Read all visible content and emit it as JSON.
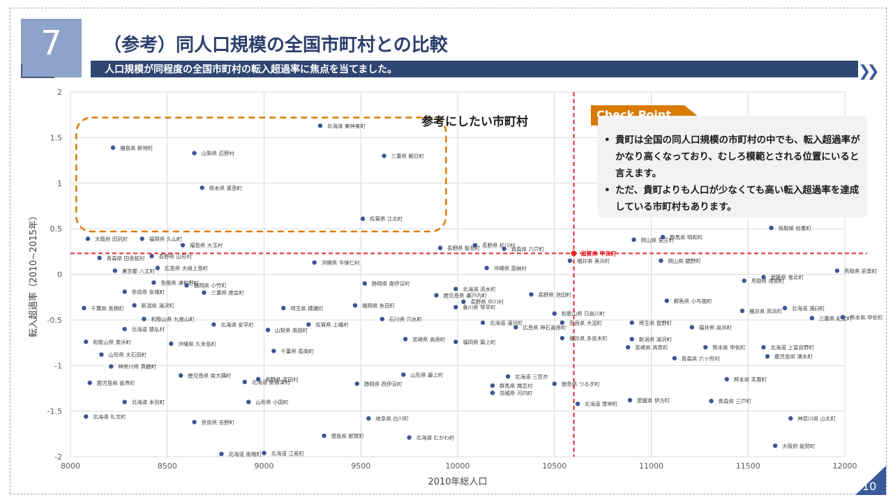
{
  "slide_number": "7",
  "page_number": "10",
  "title": "（参考）同人口規模の全国市町村との比較",
  "subtitle": "人口規模が同程度の全国市町村の転入超過率に焦点を当てました。",
  "nav_icon": "double-chevron-right-icon",
  "callout_label": "参考にしたい市町村",
  "checkpoint": {
    "title": "Check Point",
    "items": [
      "貴町は全国の同人口規模の市町村の中でも、転入超過率がかなり高くなっており、むしろ模範とされる位置にいると言えます。",
      "ただ、貴町よりも人口が少なくても高い転入超過率を達成している市町村もあります。"
    ]
  },
  "colors": {
    "accent": "#2f4673",
    "marker": "#3d5593",
    "highlight": "#e06b00",
    "refline": "#e3252c",
    "checkpoint": "#d97a00"
  },
  "chart_data": {
    "type": "scatter",
    "xlabel": "2010年総人口",
    "ylabel": "転入超過率（2010~2015年）",
    "xlim": [
      8000,
      12000
    ],
    "ylim": [
      -2,
      2
    ],
    "xticks": [
      8000,
      8500,
      9000,
      9500,
      10000,
      10500,
      11000,
      11500,
      12000
    ],
    "yticks": [
      -2,
      -1.5,
      -1,
      -0.5,
      0,
      0.5,
      1,
      1.5,
      2
    ],
    "grid": true,
    "reference": {
      "x": 10600,
      "y": 0.23,
      "label": "滋賀県 甲良町"
    },
    "highlight_region": {
      "x": [
        8030,
        9940
      ],
      "y": [
        0.47,
        1.72
      ]
    },
    "points": [
      {
        "x": 9290,
        "y": 1.63,
        "label": "北海道 東神楽町"
      },
      {
        "x": 8220,
        "y": 1.39,
        "label": "福島県 新地町"
      },
      {
        "x": 8640,
        "y": 1.33,
        "label": "山梨県 忍野村"
      },
      {
        "x": 9620,
        "y": 1.3,
        "label": "三重県 朝日町"
      },
      {
        "x": 8680,
        "y": 0.95,
        "label": "熊本県 嘉島町"
      },
      {
        "x": 9510,
        "y": 0.61,
        "label": "佐賀県 江北町"
      },
      {
        "x": 8090,
        "y": 0.39,
        "label": "大阪府 田尻町"
      },
      {
        "x": 8370,
        "y": 0.39,
        "label": "福岡県 久山町"
      },
      {
        "x": 8580,
        "y": 0.32,
        "label": "福島県 大玉村"
      },
      {
        "x": 9910,
        "y": 0.29,
        "label": "長野県 飯島町"
      },
      {
        "x": 10090,
        "y": 0.32,
        "label": "長野県 松川村"
      },
      {
        "x": 10240,
        "y": 0.28,
        "label": "青森県 六戸町"
      },
      {
        "x": 10580,
        "y": 0.15,
        "label": "福井県 美浜町"
      },
      {
        "x": 10910,
        "y": 0.38,
        "label": "岡山県 里庄町"
      },
      {
        "x": 11060,
        "y": 0.41,
        "label": "群馬県 明和町"
      },
      {
        "x": 11620,
        "y": 0.51,
        "label": "鳥取県 伯耆町"
      },
      {
        "x": 8150,
        "y": 0.18,
        "label": "青森県 田舎館村"
      },
      {
        "x": 8420,
        "y": 0.2,
        "label": "長野県 山形村"
      },
      {
        "x": 8230,
        "y": 0.04,
        "label": "東京都 八丈町"
      },
      {
        "x": 8450,
        "y": 0.07,
        "label": "広島県 大崎上島町"
      },
      {
        "x": 9260,
        "y": 0.13,
        "label": "沖縄県 今帰仁村"
      },
      {
        "x": 10150,
        "y": 0.07,
        "label": "沖縄県 恩納村"
      },
      {
        "x": 11050,
        "y": 0.15,
        "label": "岡山県 鏡野町"
      },
      {
        "x": 11480,
        "y": -0.07,
        "label": "鳥取県 南部町"
      },
      {
        "x": 11580,
        "y": -0.03,
        "label": "愛媛県 鬼北町"
      },
      {
        "x": 11960,
        "y": 0.04,
        "label": "鳥取県 岩美町"
      },
      {
        "x": 8430,
        "y": -0.09,
        "label": "島根県 津和野町"
      },
      {
        "x": 8600,
        "y": -0.12,
        "label": "福岡県 小竹町"
      },
      {
        "x": 8280,
        "y": -0.19,
        "label": "奈良県 安堵町"
      },
      {
        "x": 8690,
        "y": -0.2,
        "label": "三重県 度会町"
      },
      {
        "x": 9520,
        "y": -0.1,
        "label": "静岡県 南伊豆町"
      },
      {
        "x": 9990,
        "y": -0.16,
        "label": "北海道 清水町"
      },
      {
        "x": 9890,
        "y": -0.23,
        "label": "鹿児島県 瀬戸内町"
      },
      {
        "x": 10030,
        "y": -0.3,
        "label": "長野県 中川村"
      },
      {
        "x": 10380,
        "y": -0.22,
        "label": "長野県 池田町"
      },
      {
        "x": 9470,
        "y": -0.34,
        "label": "福岡県 糸田町"
      },
      {
        "x": 9990,
        "y": -0.36,
        "label": "香川県 琴平町"
      },
      {
        "x": 8330,
        "y": -0.34,
        "label": "新潟県 湯沢町"
      },
      {
        "x": 8070,
        "y": -0.37,
        "label": "千葉県 長柄町"
      },
      {
        "x": 9100,
        "y": -0.37,
        "label": "埼玉県 横瀬町"
      },
      {
        "x": 10500,
        "y": -0.43,
        "label": "和歌山県 日高川町"
      },
      {
        "x": 11080,
        "y": -0.29,
        "label": "群馬県 小布施町"
      },
      {
        "x": 11470,
        "y": -0.4,
        "label": "福井県 高浜町"
      },
      {
        "x": 11690,
        "y": -0.37,
        "label": "北海道 浦臼町"
      },
      {
        "x": 10900,
        "y": -0.53,
        "label": "埼玉県 皆野町"
      },
      {
        "x": 8380,
        "y": -0.49,
        "label": "和歌山県 九度山町"
      },
      {
        "x": 8280,
        "y": -0.6,
        "label": "北海道 猿払村"
      },
      {
        "x": 8740,
        "y": -0.55,
        "label": "北海道 安平町"
      },
      {
        "x": 9230,
        "y": -0.55,
        "label": "佐賀県 上峰町"
      },
      {
        "x": 9610,
        "y": -0.49,
        "label": "石川県 穴水町"
      },
      {
        "x": 10130,
        "y": -0.53,
        "label": "北海道 浦河町"
      },
      {
        "x": 10540,
        "y": -0.53,
        "label": "奈良県 大淀町"
      },
      {
        "x": 10300,
        "y": -0.58,
        "label": "広島県 神石高原町"
      },
      {
        "x": 9020,
        "y": -0.61,
        "label": "山梨県 南部町"
      },
      {
        "x": 8080,
        "y": -0.74,
        "label": "和歌山県 美浜町"
      },
      {
        "x": 8520,
        "y": -0.76,
        "label": "沖縄県 久米島町"
      },
      {
        "x": 8160,
        "y": -0.88,
        "label": "山形県 大石田町"
      },
      {
        "x": 9050,
        "y": -0.84,
        "label": "千葉県 長南町"
      },
      {
        "x": 9730,
        "y": -0.71,
        "label": "宮崎県 高原町"
      },
      {
        "x": 9990,
        "y": -0.74,
        "label": "福岡県 築上町"
      },
      {
        "x": 10540,
        "y": -0.7,
        "label": "福井県 多良木町"
      },
      {
        "x": 10900,
        "y": -0.71,
        "label": "新潟県 湯沢町"
      },
      {
        "x": 11210,
        "y": -0.58,
        "label": "福井県 高浜町"
      },
      {
        "x": 11580,
        "y": -0.8,
        "label": "北海道 上富良野町"
      },
      {
        "x": 11830,
        "y": -0.48,
        "label": "三重県 紀宝町"
      },
      {
        "x": 11990,
        "y": -0.47,
        "label": "熊本県 甲佐町"
      },
      {
        "x": 10880,
        "y": -0.8,
        "label": "宮崎県 高原町"
      },
      {
        "x": 11280,
        "y": -0.8,
        "label": "熊本県 甲佐町"
      },
      {
        "x": 8210,
        "y": -1.01,
        "label": "神奈川県 真鶴町"
      },
      {
        "x": 8100,
        "y": -1.19,
        "label": "鹿児島県 喜界町"
      },
      {
        "x": 8280,
        "y": -1.4,
        "label": "北海道 本別町"
      },
      {
        "x": 8570,
        "y": -1.11,
        "label": "鹿児島県 南大隅町"
      },
      {
        "x": 8900,
        "y": -1.18,
        "label": "北海道 新篠津村"
      },
      {
        "x": 8920,
        "y": -1.4,
        "label": "山形県 小国町"
      },
      {
        "x": 8970,
        "y": -1.15,
        "label": "長野県 宮田村"
      },
      {
        "x": 9480,
        "y": -1.2,
        "label": "静岡県 西伊豆町"
      },
      {
        "x": 9720,
        "y": -1.1,
        "label": "山形県 最上町"
      },
      {
        "x": 10180,
        "y": -1.22,
        "label": "群馬県 嬬恋村"
      },
      {
        "x": 10260,
        "y": -1.12,
        "label": "北海道 三笠市"
      },
      {
        "x": 10180,
        "y": -1.3,
        "label": "茨城県 河内町"
      },
      {
        "x": 10500,
        "y": -1.2,
        "label": "徳島県 つるぎ町"
      },
      {
        "x": 10620,
        "y": -1.42,
        "label": "北海道 厚岸町"
      },
      {
        "x": 10890,
        "y": -1.38,
        "label": "愛媛県 伊方町"
      },
      {
        "x": 11310,
        "y": -1.39,
        "label": "青森県 三戸町"
      },
      {
        "x": 11390,
        "y": -1.15,
        "label": "熊本県 芙蓉町"
      },
      {
        "x": 11120,
        "y": -0.92,
        "label": "青森県 六ヶ所村"
      },
      {
        "x": 11600,
        "y": -0.9,
        "label": "鹿児島県 湧水町"
      },
      {
        "x": 8080,
        "y": -1.56,
        "label": "北海道 礼文町"
      },
      {
        "x": 8640,
        "y": -1.62,
        "label": "奈良県 吉野町"
      },
      {
        "x": 9540,
        "y": -1.58,
        "label": "岐阜県 白川町"
      },
      {
        "x": 9310,
        "y": -1.77,
        "label": "徳島県 那賀町"
      },
      {
        "x": 9750,
        "y": -1.79,
        "label": "北海道 むかわ町"
      },
      {
        "x": 8780,
        "y": -1.97,
        "label": "北海道 南幌町"
      },
      {
        "x": 9000,
        "y": -1.96,
        "label": "北海道 江差町"
      },
      {
        "x": 11720,
        "y": -1.58,
        "label": "神奈川県 山北町"
      },
      {
        "x": 11640,
        "y": -1.88,
        "label": "大阪府 能勢町"
      }
    ]
  }
}
